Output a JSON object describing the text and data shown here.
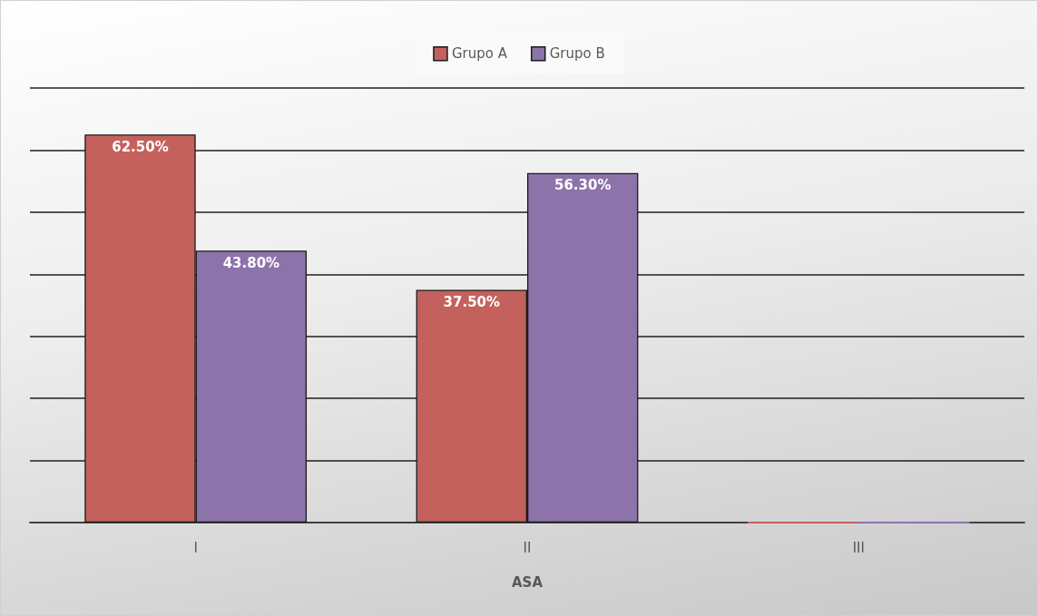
{
  "chart_data": {
    "type": "bar",
    "xlabel": "ASA",
    "categories": [
      "I",
      "II",
      "III"
    ],
    "series": [
      {
        "name": "Grupo A",
        "color": "#c4615c",
        "values": [
          62.5,
          37.5,
          0
        ],
        "value_labels": [
          "62.50%",
          "37.50%",
          null
        ]
      },
      {
        "name": "Grupo B",
        "color": "#8c73aa",
        "values": [
          43.8,
          56.3,
          0
        ],
        "value_labels": [
          "43.80%",
          "56.30%",
          null
        ]
      }
    ],
    "ylim": [
      0,
      70
    ],
    "yticks": [
      {
        "value": 0,
        "label": null
      },
      {
        "value": 10,
        "label": null
      },
      {
        "value": 20,
        "label": null
      },
      {
        "value": 30,
        "label": null
      },
      {
        "value": 40,
        "label": null
      },
      {
        "value": 50,
        "label": null
      },
      {
        "value": 60,
        "label": null
      },
      {
        "value": 70,
        "label": null
      }
    ],
    "tick_labels": "x",
    "grid": "y",
    "legend": "top"
  }
}
